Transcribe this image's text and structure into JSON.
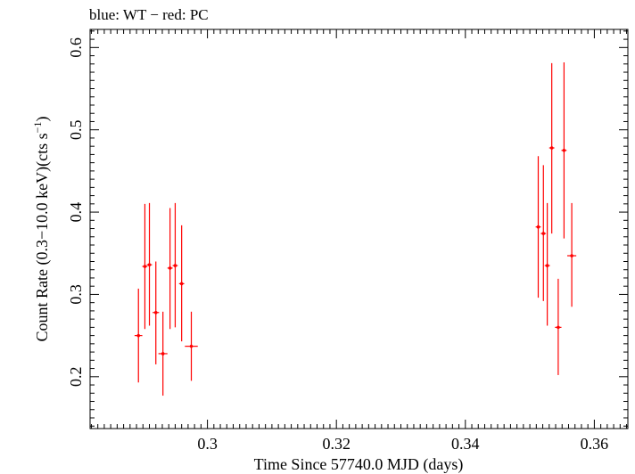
{
  "chart_data": {
    "type": "scatter",
    "title": "blue: WT − red: PC",
    "xlabel": "Time Since 57740.0 MJD (days)",
    "ylabel_main": "Count Rate (0.3−10.0 keV)(cts s",
    "ylabel_sup": "−1",
    "ylabel_end": ")",
    "xlim": [
      0.2818,
      0.3652
    ],
    "ylim": [
      0.137,
      0.622
    ],
    "x_ticks": [
      0.3,
      0.32,
      0.34,
      0.36
    ],
    "x_tick_labels": [
      "0.3",
      "0.32",
      "0.34",
      "0.36"
    ],
    "y_ticks": [
      0.2,
      0.3,
      0.4,
      0.5,
      0.6
    ],
    "y_tick_labels": [
      "0.2",
      "0.3",
      "0.4",
      "0.5",
      "0.6"
    ],
    "grid": false,
    "series": [
      {
        "name": "PC",
        "color": "#ff0000",
        "points": [
          {
            "x": 0.2893,
            "y": 0.25,
            "xerr": 0.0006,
            "ylo": 0.193,
            "yhi": 0.307
          },
          {
            "x": 0.2903,
            "y": 0.334,
            "xerr": 0.0004,
            "ylo": 0.258,
            "yhi": 0.41
          },
          {
            "x": 0.291,
            "y": 0.336,
            "xerr": 0.0004,
            "ylo": 0.262,
            "yhi": 0.411
          },
          {
            "x": 0.292,
            "y": 0.278,
            "xerr": 0.0005,
            "ylo": 0.215,
            "yhi": 0.34
          },
          {
            "x": 0.2931,
            "y": 0.228,
            "xerr": 0.0007,
            "ylo": 0.177,
            "yhi": 0.279
          },
          {
            "x": 0.2942,
            "y": 0.332,
            "xerr": 0.0004,
            "ylo": 0.258,
            "yhi": 0.405
          },
          {
            "x": 0.295,
            "y": 0.335,
            "xerr": 0.0004,
            "ylo": 0.26,
            "yhi": 0.411
          },
          {
            "x": 0.296,
            "y": 0.313,
            "xerr": 0.0004,
            "ylo": 0.243,
            "yhi": 0.384
          },
          {
            "x": 0.2975,
            "y": 0.237,
            "xerr": 0.001,
            "ylo": 0.195,
            "yhi": 0.279
          },
          {
            "x": 0.3513,
            "y": 0.382,
            "xerr": 0.0004,
            "ylo": 0.296,
            "yhi": 0.468
          },
          {
            "x": 0.3521,
            "y": 0.374,
            "xerr": 0.0004,
            "ylo": 0.292,
            "yhi": 0.457
          },
          {
            "x": 0.3527,
            "y": 0.335,
            "xerr": 0.0004,
            "ylo": 0.262,
            "yhi": 0.411
          },
          {
            "x": 0.3534,
            "y": 0.478,
            "xerr": 0.0004,
            "ylo": 0.374,
            "yhi": 0.581
          },
          {
            "x": 0.3544,
            "y": 0.26,
            "xerr": 0.0005,
            "ylo": 0.202,
            "yhi": 0.319
          },
          {
            "x": 0.3553,
            "y": 0.475,
            "xerr": 0.0004,
            "ylo": 0.368,
            "yhi": 0.582
          },
          {
            "x": 0.3565,
            "y": 0.347,
            "xerr": 0.0007,
            "ylo": 0.285,
            "yhi": 0.411
          }
        ]
      }
    ]
  }
}
